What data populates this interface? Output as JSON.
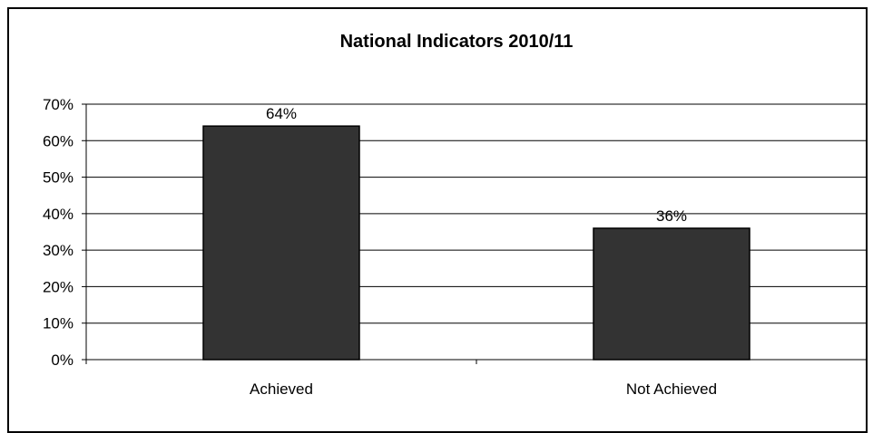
{
  "chart_data": {
    "type": "bar",
    "title": "National Indicators 2010/11",
    "categories": [
      "Achieved",
      "Not Achieved"
    ],
    "values": [
      64,
      36
    ],
    "data_labels": [
      "64%",
      "36%"
    ],
    "ylim": [
      0,
      70
    ],
    "yticks": [
      0,
      10,
      20,
      30,
      40,
      50,
      60,
      70
    ],
    "ytick_labels": [
      "0%",
      "10%",
      "20%",
      "30%",
      "40%",
      "50%",
      "60%",
      "70%"
    ],
    "grid": true,
    "legend": "none",
    "colors": {
      "bar_fill": "#333333",
      "bar_stroke": "#000000",
      "grid": "#000000",
      "frame": "#000000",
      "background": "#ffffff"
    }
  }
}
